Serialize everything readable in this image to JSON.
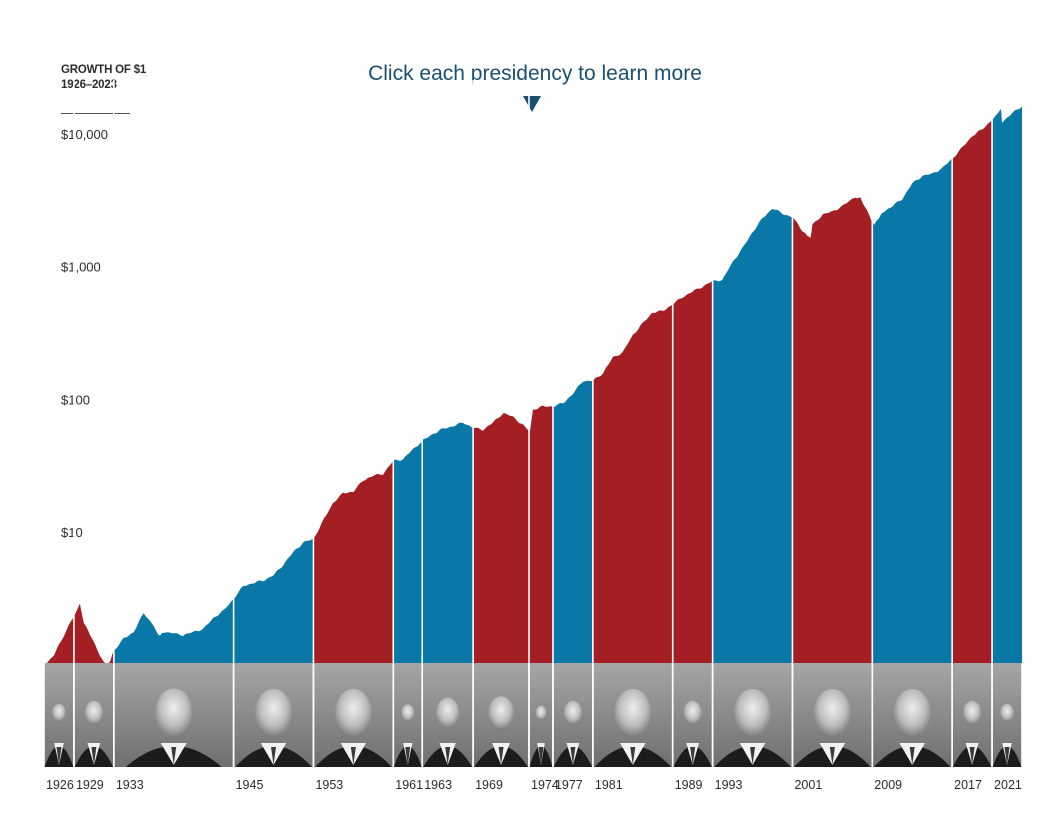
{
  "header": {
    "line1": "GROWTH OF $1",
    "line2": "1926–2023"
  },
  "cta": {
    "text": "Click each presidency to learn more",
    "arrow_icon": "triangle-down-icon"
  },
  "colors": {
    "republican": "#a31f24",
    "democrat": "#0a78a6",
    "divider": "#ffffff",
    "portrait_band": "#9a9a9a"
  },
  "chart_data": {
    "type": "area",
    "yscale": "log",
    "ylim": [
      1,
      20000
    ],
    "yticks": [
      {
        "value": 10,
        "label": "$10"
      },
      {
        "value": 100,
        "label": "$100"
      },
      {
        "value": 1000,
        "label": "$1,000"
      },
      {
        "value": 10000,
        "label": "$10,000"
      }
    ],
    "xlim": [
      1926,
      2024
    ],
    "x_tick_labels": [
      "1926",
      "1929",
      "1933",
      "1945",
      "1953",
      "1961",
      "1963",
      "1969",
      "1974",
      "1977",
      "1981",
      "1989",
      "1993",
      "2001",
      "2009",
      "2017",
      "2021"
    ],
    "presidencies": [
      {
        "start": 1926,
        "end": 1929,
        "label": "1926",
        "party": "republican"
      },
      {
        "start": 1929,
        "end": 1933,
        "label": "1929",
        "party": "republican"
      },
      {
        "start": 1933,
        "end": 1945,
        "label": "1933",
        "party": "democrat"
      },
      {
        "start": 1945,
        "end": 1953,
        "label": "1945",
        "party": "democrat"
      },
      {
        "start": 1953,
        "end": 1961,
        "label": "1953",
        "party": "republican"
      },
      {
        "start": 1961,
        "end": 1963.9,
        "label": "1961",
        "party": "democrat"
      },
      {
        "start": 1963.9,
        "end": 1969,
        "label": "1963",
        "party": "democrat"
      },
      {
        "start": 1969,
        "end": 1974.6,
        "label": "1969",
        "party": "republican"
      },
      {
        "start": 1974.6,
        "end": 1977,
        "label": "1974",
        "party": "republican"
      },
      {
        "start": 1977,
        "end": 1981,
        "label": "1977",
        "party": "democrat"
      },
      {
        "start": 1981,
        "end": 1989,
        "label": "1981",
        "party": "republican"
      },
      {
        "start": 1989,
        "end": 1993,
        "label": "1989",
        "party": "republican"
      },
      {
        "start": 1993,
        "end": 2001,
        "label": "1993",
        "party": "democrat"
      },
      {
        "start": 2001,
        "end": 2009,
        "label": "2001",
        "party": "republican"
      },
      {
        "start": 2009,
        "end": 2017,
        "label": "2009",
        "party": "democrat"
      },
      {
        "start": 2017,
        "end": 2021,
        "label": "2017",
        "party": "republican"
      },
      {
        "start": 2021,
        "end": 2024,
        "label": "2021",
        "party": "democrat"
      }
    ],
    "series": [
      {
        "x": [
          1926,
          1927,
          1928,
          1929.6,
          1930,
          1931,
          1932,
          1932.5,
          1933,
          1934,
          1935,
          1936,
          1937,
          1937.5,
          1938,
          1939,
          1940,
          1941,
          1942,
          1943,
          1944,
          1945,
          1946,
          1947,
          1948,
          1949,
          1950,
          1951,
          1952,
          1953,
          1954,
          1955,
          1956,
          1957,
          1958,
          1959,
          1960,
          1961,
          1962,
          1963,
          1964,
          1965,
          1966,
          1967,
          1968,
          1969,
          1970,
          1971,
          1972,
          1973,
          1974,
          1974.7,
          1975,
          1976,
          1977,
          1978,
          1979,
          1980,
          1981,
          1982,
          1983,
          1984,
          1985,
          1986,
          1987,
          1988,
          1989,
          1990,
          1991,
          1992,
          1993,
          1994,
          1995,
          1996,
          1997,
          1998,
          1999,
          2000,
          2001,
          2002,
          2002.8,
          2003,
          2004,
          2005,
          2006,
          2007,
          2007.8,
          2009,
          2009.2,
          2010,
          2011,
          2012,
          2013,
          2014,
          2015,
          2016,
          2017,
          2018,
          2019,
          2020,
          2021,
          2021.9,
          2022,
          2023,
          2024
        ],
        "y": [
          1.0,
          1.2,
          1.7,
          2.9,
          2.1,
          1.5,
          1.05,
          1.0,
          1.3,
          1.6,
          1.8,
          2.5,
          2.0,
          1.7,
          1.8,
          1.75,
          1.7,
          1.8,
          1.9,
          2.3,
          2.6,
          3.2,
          4.0,
          4.2,
          4.4,
          4.8,
          5.8,
          7.2,
          8.5,
          9.0,
          12.5,
          17.0,
          20.0,
          20.5,
          25.0,
          27.0,
          28.0,
          35.0,
          36.0,
          43.0,
          50.0,
          56.0,
          61.0,
          64.0,
          68.0,
          62.0,
          60.0,
          68.0,
          80.0,
          75.0,
          65.0,
          58.0,
          85.0,
          90.0,
          90.0,
          95.0,
          112.0,
          140.0,
          140.0,
          160.0,
          210.0,
          230.0,
          310.0,
          380.0,
          460.0,
          470.0,
          530.0,
          600.0,
          660.0,
          720.0,
          790.0,
          810.0,
          1100.0,
          1400.0,
          1850.0,
          2350.0,
          2800.0,
          2550.0,
          2400.0,
          1900.0,
          1650.0,
          2100.0,
          2500.0,
          2650.0,
          2900.0,
          3300.0,
          3400.0,
          2200.0,
          2100.0,
          2600.0,
          2900.0,
          3300.0,
          4300.0,
          4900.0,
          5100.0,
          5600.0,
          6600.0,
          8000.0,
          9800.0,
          11000.0,
          13000.0,
          15500.0,
          12500.0,
          14500.0,
          16500.0
        ]
      }
    ]
  }
}
